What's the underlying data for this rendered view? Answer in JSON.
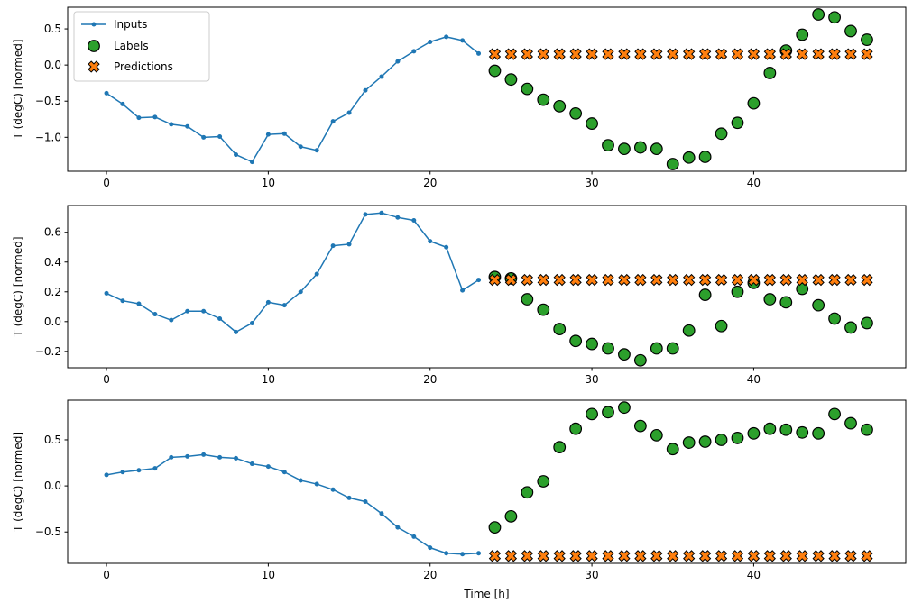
{
  "figure": {
    "xlabel": "Time [h]",
    "ylabel": "T (degC) [normed]",
    "colors": {
      "inputs": "#1f77b4",
      "labels": "#2ca02c",
      "predictions": "#ff7f0e",
      "marker_edge": "#000000",
      "legend_border": "#cccccc",
      "axes_frame": "#000000",
      "background": "#ffffff"
    },
    "legend": {
      "position": "upper-left",
      "entries": [
        {
          "label": "Inputs",
          "marker": "line-dot",
          "color": "#1f77b4"
        },
        {
          "label": "Labels",
          "marker": "circle",
          "color": "#2ca02c"
        },
        {
          "label": "Predictions",
          "marker": "x",
          "color": "#ff7f0e"
        }
      ]
    }
  },
  "chart_data": [
    {
      "type": "line",
      "title": "",
      "ylabel": "T (degC) [normed]",
      "xlabel": "",
      "xlim": [
        -2.4,
        49.4
      ],
      "ylim": [
        -1.47,
        0.8
      ],
      "xticks": [
        0,
        10,
        20,
        30,
        40
      ],
      "yticks": [
        0.5,
        0.0,
        -0.5,
        -1.0
      ],
      "grid": false,
      "inputs": {
        "x": [
          0,
          1,
          2,
          3,
          4,
          5,
          6,
          7,
          8,
          9,
          10,
          11,
          12,
          13,
          14,
          15,
          16,
          17,
          18,
          19,
          20,
          21,
          22,
          23
        ],
        "y": [
          -0.39,
          -0.54,
          -0.73,
          -0.72,
          -0.82,
          -0.85,
          -1.0,
          -0.99,
          -1.24,
          -1.34,
          -0.96,
          -0.95,
          -1.13,
          -1.18,
          -0.78,
          -0.66,
          -0.35,
          -0.16,
          0.05,
          0.19,
          0.32,
          0.39,
          0.34,
          0.16
        ]
      },
      "labels": {
        "x": [
          24,
          25,
          26,
          27,
          28,
          29,
          30,
          31,
          32,
          33,
          34,
          35,
          36,
          37,
          38,
          39,
          40,
          41,
          42,
          43,
          44,
          45,
          46,
          47
        ],
        "y": [
          -0.08,
          -0.2,
          -0.33,
          -0.48,
          -0.57,
          -0.67,
          -0.81,
          -1.11,
          -1.16,
          -1.14,
          -1.16,
          -1.37,
          -1.28,
          -1.27,
          -0.95,
          -0.8,
          -0.53,
          -0.11,
          0.2,
          0.42,
          0.7,
          0.66,
          0.47,
          0.35
        ]
      },
      "predictions": {
        "x": [
          24,
          25,
          26,
          27,
          28,
          29,
          30,
          31,
          32,
          33,
          34,
          35,
          36,
          37,
          38,
          39,
          40,
          41,
          42,
          43,
          44,
          45,
          46,
          47
        ],
        "y": [
          0.15,
          0.15,
          0.15,
          0.15,
          0.15,
          0.15,
          0.15,
          0.15,
          0.15,
          0.15,
          0.15,
          0.15,
          0.15,
          0.15,
          0.15,
          0.15,
          0.15,
          0.15,
          0.15,
          0.15,
          0.15,
          0.15,
          0.15,
          0.15
        ]
      }
    },
    {
      "type": "line",
      "title": "",
      "ylabel": "T (degC) [normed]",
      "xlabel": "",
      "xlim": [
        -2.4,
        49.4
      ],
      "ylim": [
        -0.31,
        0.78
      ],
      "xticks": [
        0,
        10,
        20,
        30,
        40
      ],
      "yticks": [
        0.6,
        0.4,
        0.2,
        0.0,
        -0.2
      ],
      "grid": false,
      "inputs": {
        "x": [
          0,
          1,
          2,
          3,
          4,
          5,
          6,
          7,
          8,
          9,
          10,
          11,
          12,
          13,
          14,
          15,
          16,
          17,
          18,
          19,
          20,
          21,
          22,
          23
        ],
        "y": [
          0.19,
          0.14,
          0.12,
          0.05,
          0.01,
          0.07,
          0.07,
          0.02,
          -0.07,
          -0.01,
          0.13,
          0.11,
          0.2,
          0.32,
          0.51,
          0.52,
          0.72,
          0.73,
          0.7,
          0.68,
          0.54,
          0.5,
          0.21,
          0.28
        ]
      },
      "labels": {
        "x": [
          24,
          25,
          26,
          27,
          28,
          29,
          30,
          31,
          32,
          33,
          34,
          35,
          36,
          37,
          38,
          39,
          40,
          41,
          42,
          43,
          44,
          45,
          46,
          47
        ],
        "y": [
          0.3,
          0.29,
          0.15,
          0.08,
          -0.05,
          -0.13,
          -0.15,
          -0.18,
          -0.22,
          -0.26,
          -0.18,
          -0.18,
          -0.06,
          0.18,
          -0.03,
          0.2,
          0.26,
          0.15,
          0.13,
          0.22,
          0.11,
          0.02,
          -0.04,
          -0.01
        ]
      },
      "predictions": {
        "x": [
          24,
          25,
          26,
          27,
          28,
          29,
          30,
          31,
          32,
          33,
          34,
          35,
          36,
          37,
          38,
          39,
          40,
          41,
          42,
          43,
          44,
          45,
          46,
          47
        ],
        "y": [
          0.28,
          0.28,
          0.28,
          0.28,
          0.28,
          0.28,
          0.28,
          0.28,
          0.28,
          0.28,
          0.28,
          0.28,
          0.28,
          0.28,
          0.28,
          0.28,
          0.28,
          0.28,
          0.28,
          0.28,
          0.28,
          0.28,
          0.28,
          0.28
        ]
      }
    },
    {
      "type": "line",
      "title": "",
      "ylabel": "T (degC) [normed]",
      "xlabel": "Time [h]",
      "xlim": [
        -2.4,
        49.4
      ],
      "ylim": [
        -0.84,
        0.93
      ],
      "xticks": [
        0,
        10,
        20,
        30,
        40
      ],
      "yticks": [
        0.5,
        0.0,
        -0.5
      ],
      "grid": false,
      "inputs": {
        "x": [
          0,
          1,
          2,
          3,
          4,
          5,
          6,
          7,
          8,
          9,
          10,
          11,
          12,
          13,
          14,
          15,
          16,
          17,
          18,
          19,
          20,
          21,
          22,
          23
        ],
        "y": [
          0.12,
          0.15,
          0.17,
          0.19,
          0.31,
          0.32,
          0.34,
          0.31,
          0.3,
          0.24,
          0.21,
          0.15,
          0.06,
          0.02,
          -0.04,
          -0.13,
          -0.17,
          -0.3,
          -0.45,
          -0.55,
          -0.67,
          -0.73,
          -0.74,
          -0.73
        ]
      },
      "labels": {
        "x": [
          24,
          25,
          26,
          27,
          28,
          29,
          30,
          31,
          32,
          33,
          34,
          35,
          36,
          37,
          38,
          39,
          40,
          41,
          42,
          43,
          44,
          45,
          46,
          47
        ],
        "y": [
          -0.45,
          -0.33,
          -0.07,
          0.05,
          0.42,
          0.62,
          0.78,
          0.8,
          0.85,
          0.65,
          0.55,
          0.4,
          0.47,
          0.48,
          0.5,
          0.52,
          0.57,
          0.62,
          0.61,
          0.58,
          0.57,
          0.78,
          0.68,
          0.61
        ]
      },
      "predictions": {
        "x": [
          24,
          25,
          26,
          27,
          28,
          29,
          30,
          31,
          32,
          33,
          34,
          35,
          36,
          37,
          38,
          39,
          40,
          41,
          42,
          43,
          44,
          45,
          46,
          47
        ],
        "y": [
          -0.76,
          -0.76,
          -0.76,
          -0.76,
          -0.76,
          -0.76,
          -0.76,
          -0.76,
          -0.76,
          -0.76,
          -0.76,
          -0.76,
          -0.76,
          -0.76,
          -0.76,
          -0.76,
          -0.76,
          -0.76,
          -0.76,
          -0.76,
          -0.76,
          -0.76,
          -0.76,
          -0.76
        ]
      }
    }
  ]
}
